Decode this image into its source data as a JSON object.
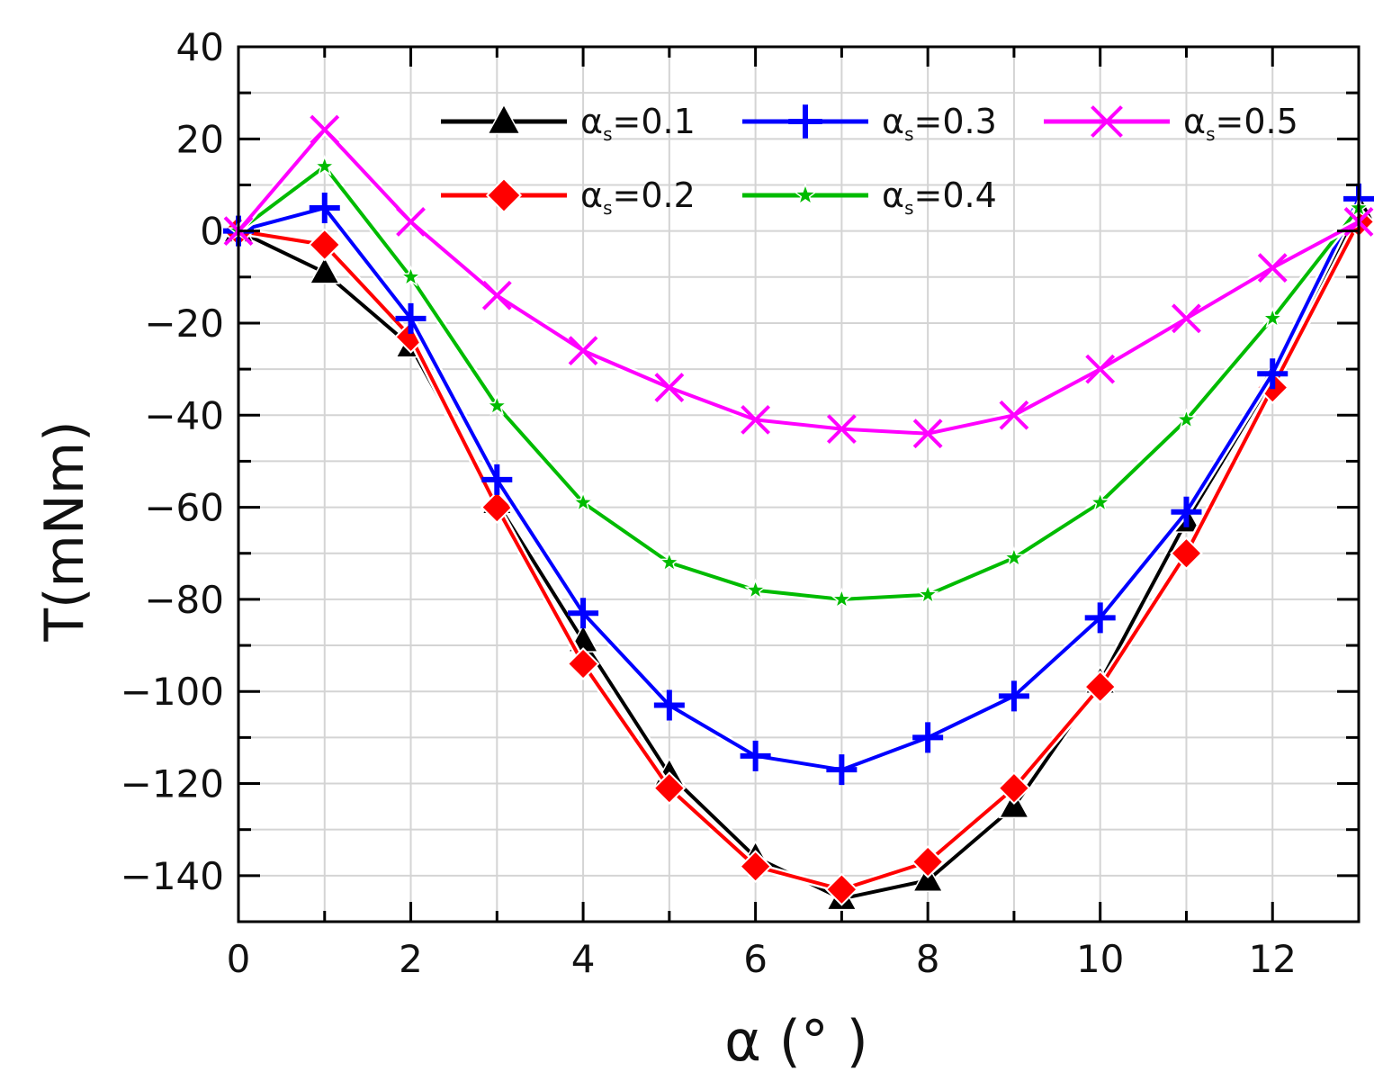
{
  "chart_data": {
    "type": "line",
    "title": "",
    "xlabel": "α (°   )",
    "ylabel": "T(mNm)",
    "xlim": [
      0,
      13
    ],
    "ylim": [
      -150,
      40
    ],
    "xticks": [
      0,
      2,
      4,
      6,
      8,
      10,
      12
    ],
    "yticks": [
      40,
      20,
      0,
      -20,
      -40,
      -60,
      -80,
      -100,
      -120,
      -140
    ],
    "grid": true,
    "legend_position": "top-right",
    "x": [
      0,
      1,
      2,
      3,
      4,
      5,
      6,
      7,
      8,
      9,
      10,
      11,
      12,
      13
    ],
    "series": [
      {
        "name": "α",
        "subscript": "s",
        "suffix": "=0.1",
        "color": "#000000",
        "marker": "triangle",
        "values": [
          0,
          -9,
          -25,
          -59,
          -89,
          -118,
          -136,
          -145,
          -141,
          -125,
          -98,
          -63,
          -32,
          5
        ]
      },
      {
        "name": "α",
        "subscript": "s",
        "suffix": "=0.2",
        "color": "#ff0000",
        "marker": "diamond",
        "values": [
          0,
          -3,
          -23,
          -60,
          -94,
          -121,
          -138,
          -143,
          -137,
          -121,
          -99,
          -70,
          -34,
          2
        ]
      },
      {
        "name": "α",
        "subscript": "s",
        "suffix": "=0.3",
        "color": "#0000ff",
        "marker": "plus",
        "values": [
          0,
          5,
          -19,
          -54,
          -83,
          -103,
          -114,
          -117,
          -110,
          -101,
          -84,
          -61,
          -31,
          7
        ]
      },
      {
        "name": "α",
        "subscript": "s",
        "suffix": "=0.4",
        "color": "#00bb00",
        "marker": "star",
        "values": [
          0,
          14,
          -10,
          -38,
          -59,
          -72,
          -78,
          -80,
          -79,
          -71,
          -59,
          -41,
          -19,
          5
        ]
      },
      {
        "name": "α",
        "subscript": "s",
        "suffix": "=0.5",
        "color": "#ff00ff",
        "marker": "x",
        "values": [
          0,
          22,
          2,
          -14,
          -26,
          -34,
          -41,
          -43,
          -44,
          -40,
          -30,
          -19,
          -8,
          2
        ]
      }
    ]
  }
}
